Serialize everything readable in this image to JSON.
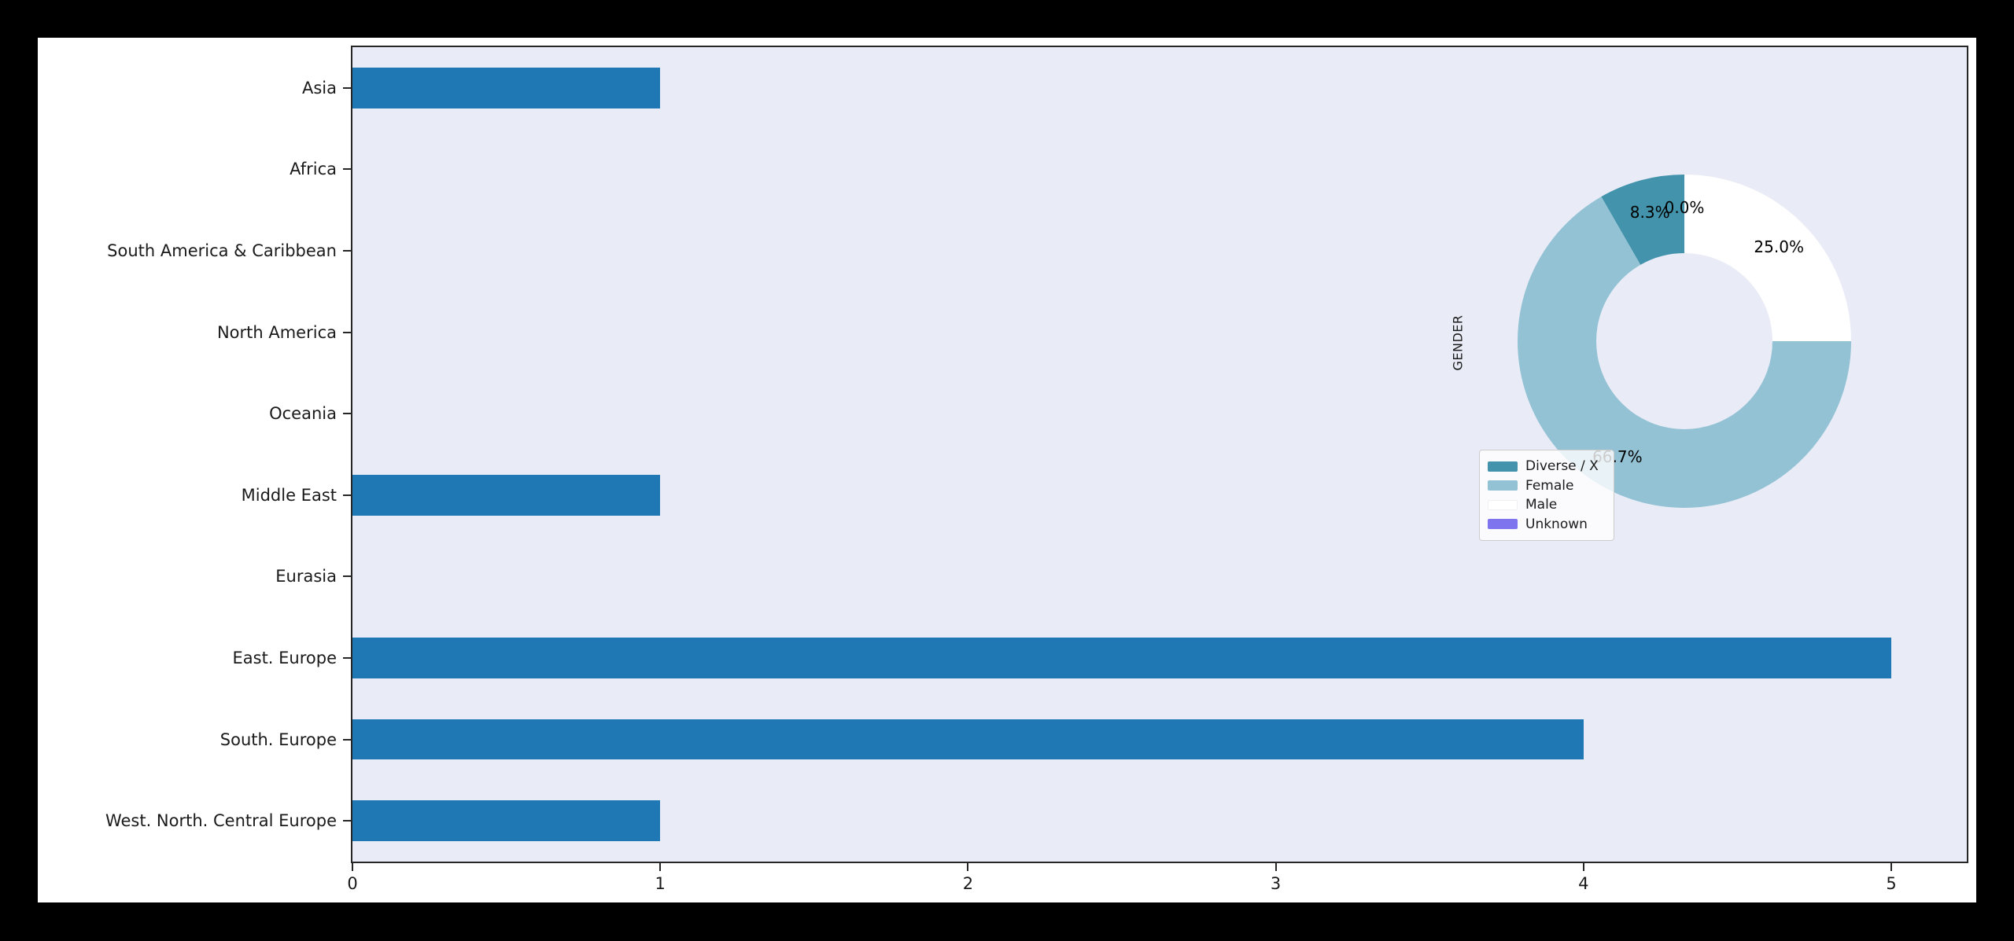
{
  "page": {
    "background": "#000000",
    "figure_background": "#ffffff"
  },
  "chart_data": [
    {
      "type": "bar",
      "orientation": "horizontal",
      "title": "",
      "xlabel": "",
      "ylabel": "",
      "plot_background": "#e9ecf7",
      "bar_color": "#1f77b4",
      "grid": false,
      "categories": [
        "Asia",
        "Africa",
        "South America & Caribbean",
        "North America",
        "Oceania",
        "Middle East",
        "Eurasia",
        "East. Europe",
        "South. Europe",
        "West. North. Central Europe"
      ],
      "values": [
        1,
        0,
        0,
        0,
        0,
        1,
        0,
        5,
        4,
        1
      ],
      "xlim": [
        0,
        5.25
      ],
      "xticks": [
        "0",
        "1",
        "2",
        "3",
        "4",
        "5"
      ],
      "xtick_values": [
        0,
        1,
        2,
        3,
        4,
        5
      ]
    },
    {
      "type": "pie",
      "donut": true,
      "title": "GENDER",
      "start_angle": 90,
      "counterclock": true,
      "legend_position": "lower left inset",
      "slices": [
        {
          "label": "Diverse / X",
          "pct": 8.3,
          "pct_label": "8.3%",
          "color": "#4293ab"
        },
        {
          "label": "Female",
          "pct": 66.7,
          "pct_label": "66.7%",
          "color": "#92c2d4"
        },
        {
          "label": "Male",
          "pct": 25.0,
          "pct_label": "25.0%",
          "color": "#ffffff"
        },
        {
          "label": "Unknown",
          "pct": 0.0,
          "pct_label": "0.0%",
          "color": "#7e74ee"
        }
      ]
    }
  ]
}
